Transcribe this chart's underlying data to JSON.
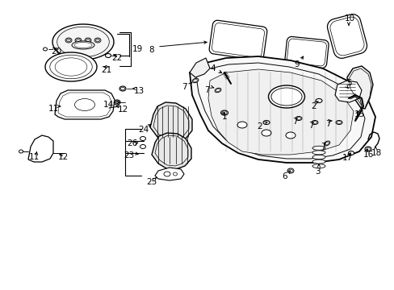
{
  "background_color": "#ffffff",
  "figure_width": 4.89,
  "figure_height": 3.6,
  "dpi": 100,
  "line_color": "#000000",
  "font_size": 7.5
}
